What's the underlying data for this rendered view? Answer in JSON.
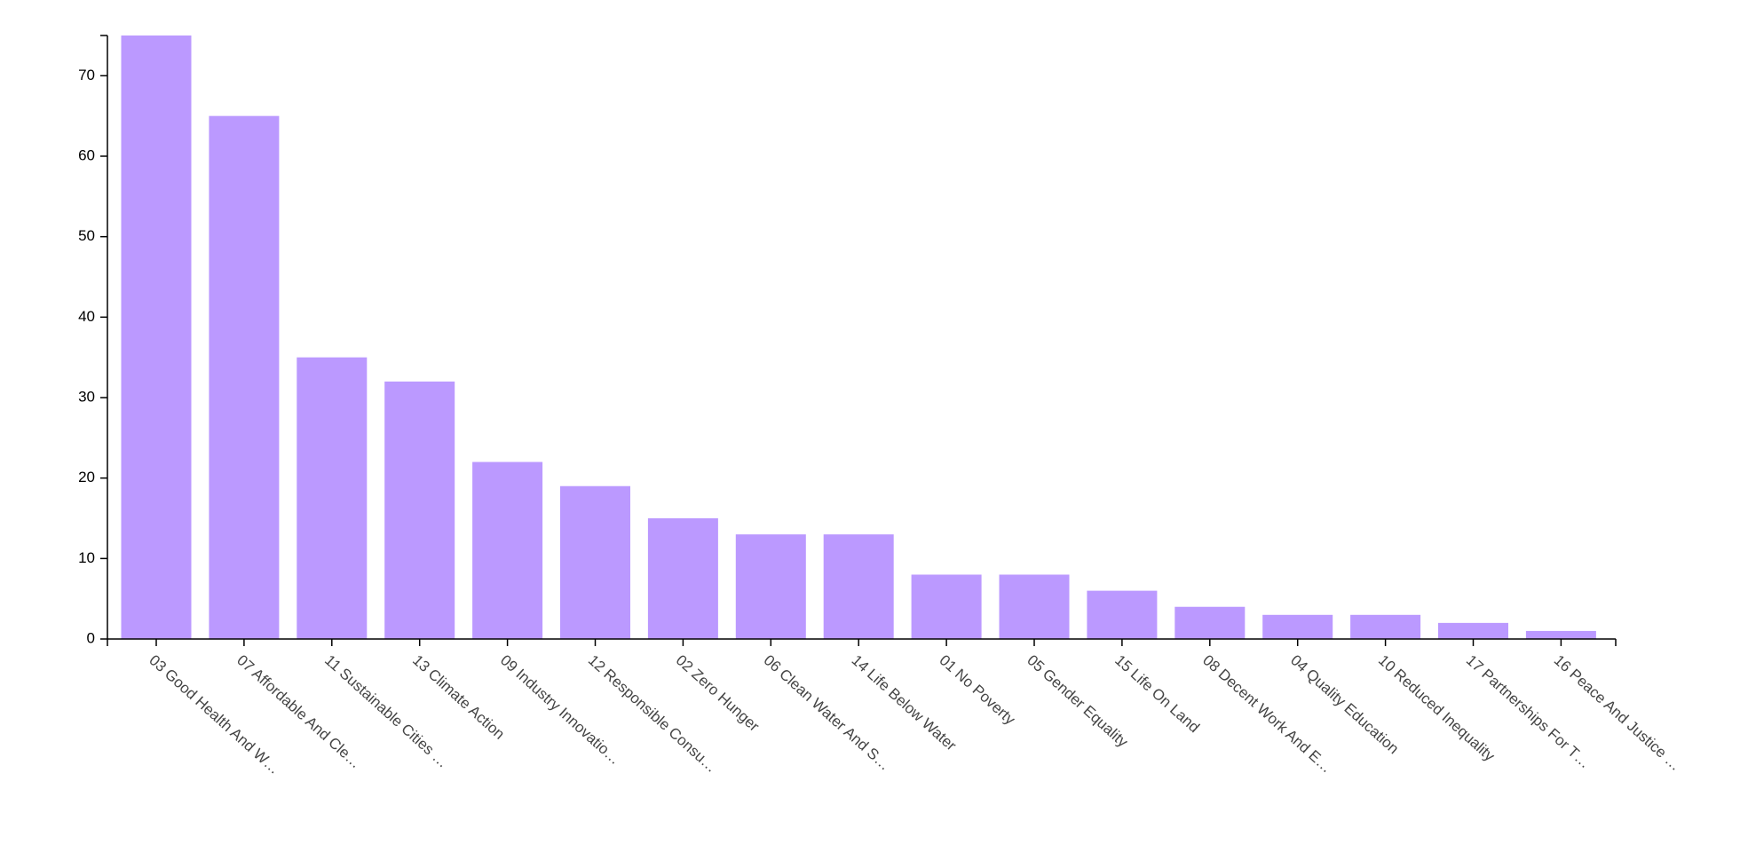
{
  "chart_data": {
    "type": "bar",
    "categories": [
      "03 Good Health And W…",
      "07 Affordable And Cle…",
      "11 Sustainable Cities …",
      "13 Climate Action",
      "09 Industry Innovatio…",
      "12 Responsible Consu…",
      "02 Zero Hunger",
      "06 Clean Water And S…",
      "14 Life Below Water",
      "01 No Poverty",
      "05 Gender Equality",
      "15 Life On Land",
      "08 Decent Work And E…",
      "04 Quality Education",
      "10 Reduced Inequality",
      "17 Partnerships For T…",
      "16 Peace And Justice …"
    ],
    "values": [
      75,
      65,
      35,
      32,
      22,
      19,
      15,
      13,
      13,
      8,
      8,
      6,
      4,
      3,
      3,
      2,
      1
    ],
    "color": "#bb99ff",
    "ylim": [
      0,
      75
    ],
    "yticks": [
      0,
      10,
      20,
      30,
      40,
      50,
      60,
      70
    ],
    "grid": false
  }
}
